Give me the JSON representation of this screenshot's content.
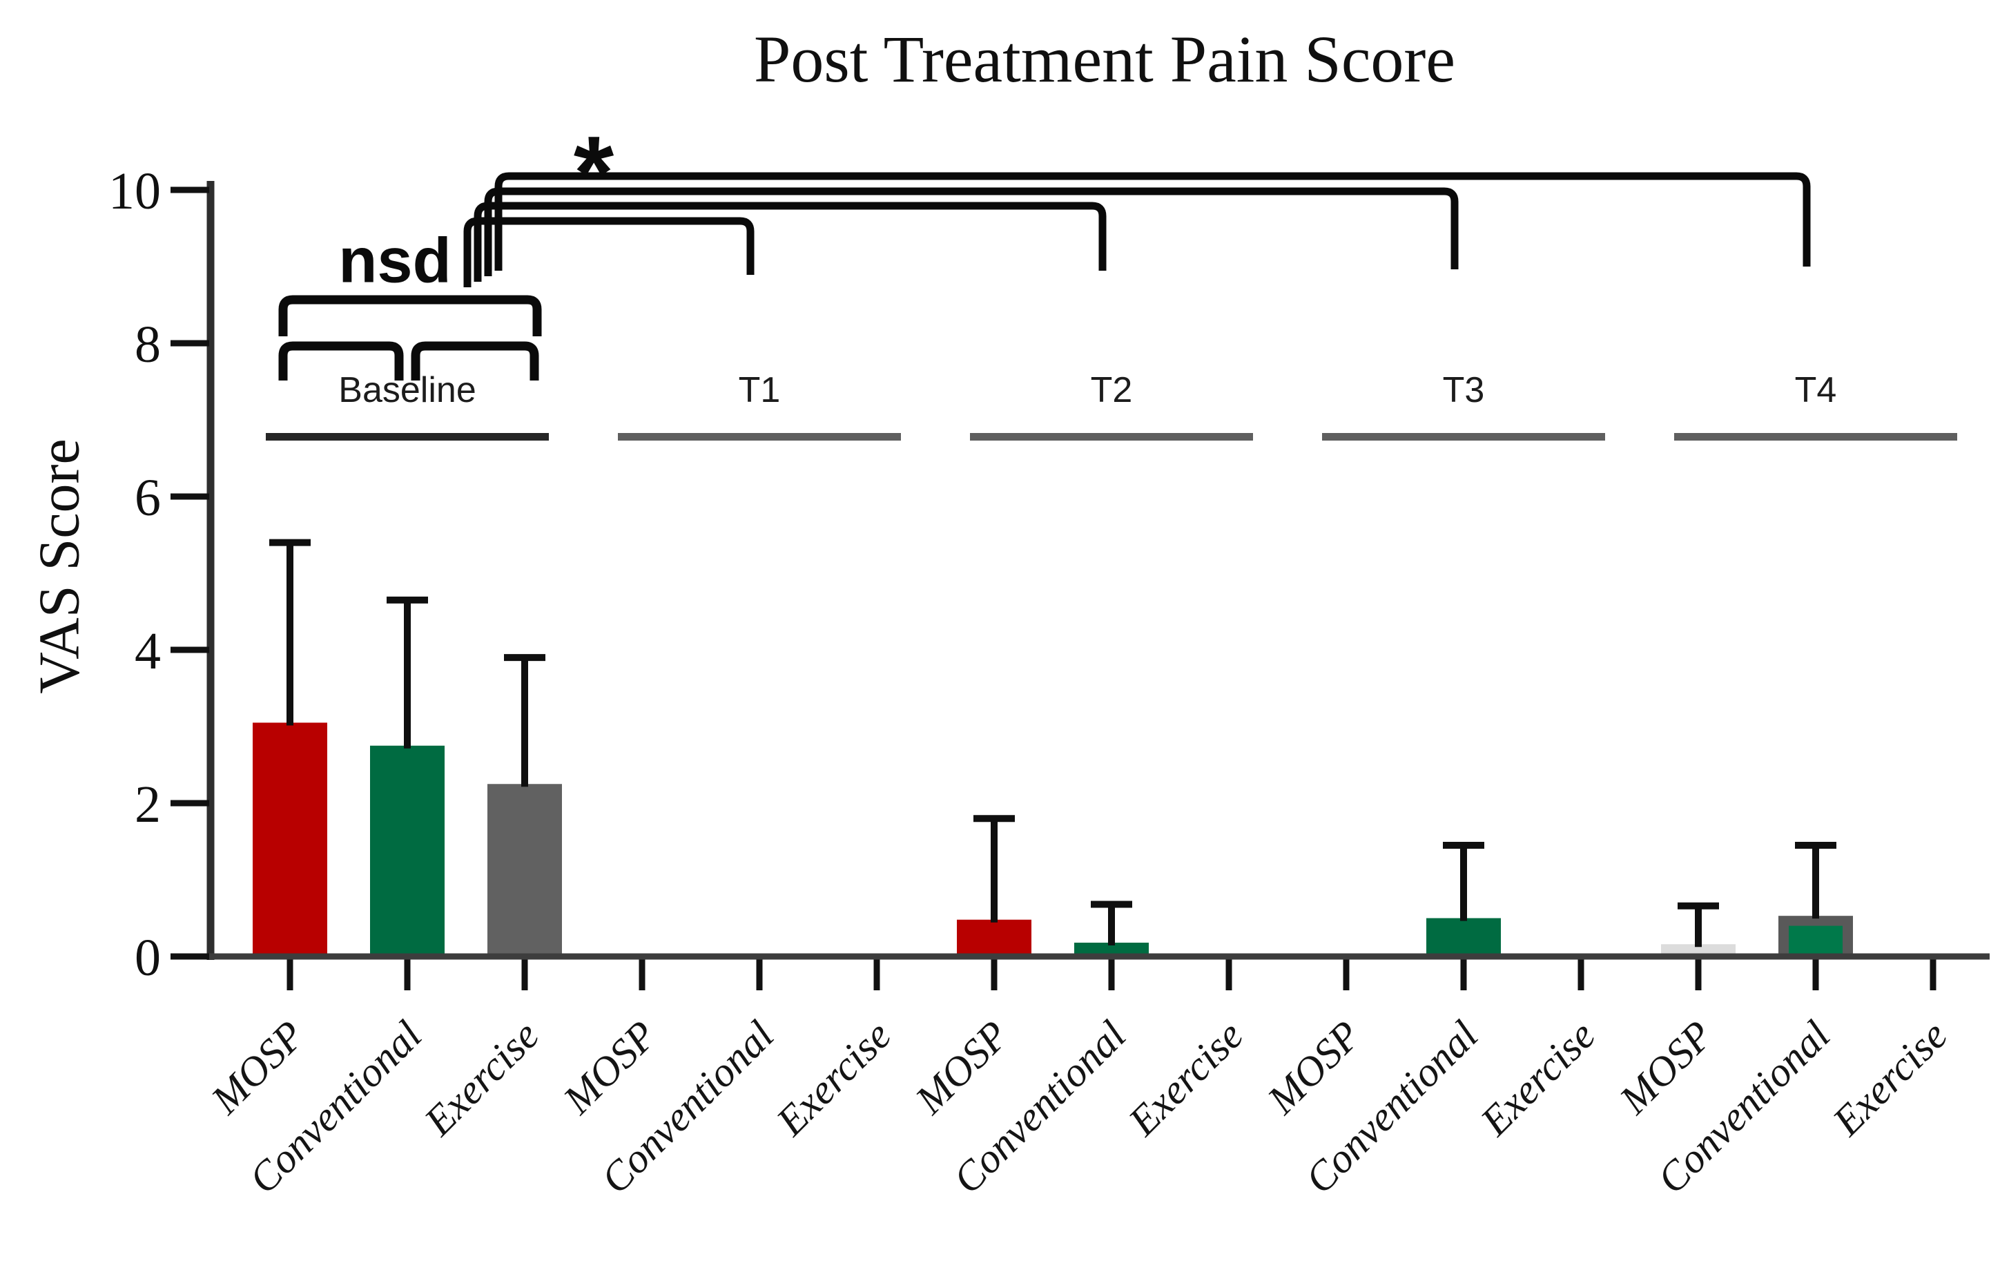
{
  "figure": {
    "title": "Post Treatment Pain Score",
    "y_axis_label": "VAS Score",
    "nsd_label": "nsd",
    "significance_label": "*"
  },
  "chart_data": {
    "type": "bar",
    "title": "Post Treatment Pain Score",
    "xlabel": "",
    "ylabel": "VAS Score",
    "ylim": [
      0,
      10
    ],
    "yticks": [
      0,
      2,
      4,
      6,
      8,
      10
    ],
    "grid": false,
    "legend": "none",
    "series_labels": [
      "MOSP",
      "Conventional",
      "Exercise"
    ],
    "colors": {
      "MOSP": "#b80000",
      "Conventional": "#006b41",
      "Exercise": "#616161",
      "mosp_t4_light": "#dcdcdc",
      "conventional_t4_outer": "#595959",
      "conventional_t4_inner": "#00794a"
    },
    "groups": [
      {
        "label": "Baseline",
        "underline_color": "#262626"
      },
      {
        "label": "T1",
        "underline_color": "#5f5f5f"
      },
      {
        "label": "T2",
        "underline_color": "#5f5f5f"
      },
      {
        "label": "T3",
        "underline_color": "#5f5f5f"
      },
      {
        "label": "T4",
        "underline_color": "#5f5f5f"
      }
    ],
    "bars": [
      {
        "group": "Baseline",
        "category": "MOSP",
        "value": 3.05,
        "error_top": 5.4,
        "color": "#b80000"
      },
      {
        "group": "Baseline",
        "category": "Conventional",
        "value": 2.75,
        "error_top": 4.65,
        "color": "#006b41"
      },
      {
        "group": "Baseline",
        "category": "Exercise",
        "value": 2.25,
        "error_top": 3.9,
        "color": "#616161"
      },
      {
        "group": "T1",
        "category": "MOSP",
        "value": 0,
        "error_top": null,
        "color": "#b80000"
      },
      {
        "group": "T1",
        "category": "Conventional",
        "value": 0,
        "error_top": null,
        "color": "#006b41"
      },
      {
        "group": "T1",
        "category": "Exercise",
        "value": 0,
        "error_top": null,
        "color": "#616161"
      },
      {
        "group": "T2",
        "category": "MOSP",
        "value": 0.48,
        "error_top": 1.8,
        "color": "#b80000"
      },
      {
        "group": "T2",
        "category": "Conventional",
        "value": 0.18,
        "error_top": 0.68,
        "color": "#006b41"
      },
      {
        "group": "T2",
        "category": "Exercise",
        "value": 0,
        "error_top": null,
        "color": "#616161"
      },
      {
        "group": "T3",
        "category": "MOSP",
        "value": 0,
        "error_top": null,
        "color": "#b80000"
      },
      {
        "group": "T3",
        "category": "Conventional",
        "value": 0.5,
        "error_top": 1.45,
        "color": "#006b41"
      },
      {
        "group": "T3",
        "category": "Exercise",
        "value": 0,
        "error_top": null,
        "color": "#616161"
      },
      {
        "group": "T4",
        "category": "MOSP",
        "value": 0.16,
        "error_top": 0.66,
        "color": "#dcdcdc"
      },
      {
        "group": "T4",
        "category": "Conventional",
        "value": 0.53,
        "error_top": 1.45,
        "color": "#595959",
        "overlay": {
          "value": 0.4,
          "color": "#00794a"
        }
      },
      {
        "group": "T4",
        "category": "Exercise",
        "value": 0,
        "error_top": null,
        "color": "#616161"
      }
    ],
    "comparisons": {
      "nsd": [
        {
          "from": "Baseline:MOSP",
          "to": "Baseline:Exercise",
          "tier": 1
        },
        {
          "from": "Baseline:MOSP",
          "to": "Baseline:Conventional",
          "tier": 0
        },
        {
          "from": "Baseline:Conventional",
          "to": "Baseline:Exercise",
          "tier": 0
        }
      ],
      "significant": [
        {
          "from": "Baseline",
          "to": "T1",
          "label": "*"
        },
        {
          "from": "Baseline",
          "to": "T2",
          "label": "*"
        },
        {
          "from": "Baseline",
          "to": "T3",
          "label": "*"
        },
        {
          "from": "Baseline",
          "to": "T4",
          "label": "*"
        }
      ]
    }
  }
}
